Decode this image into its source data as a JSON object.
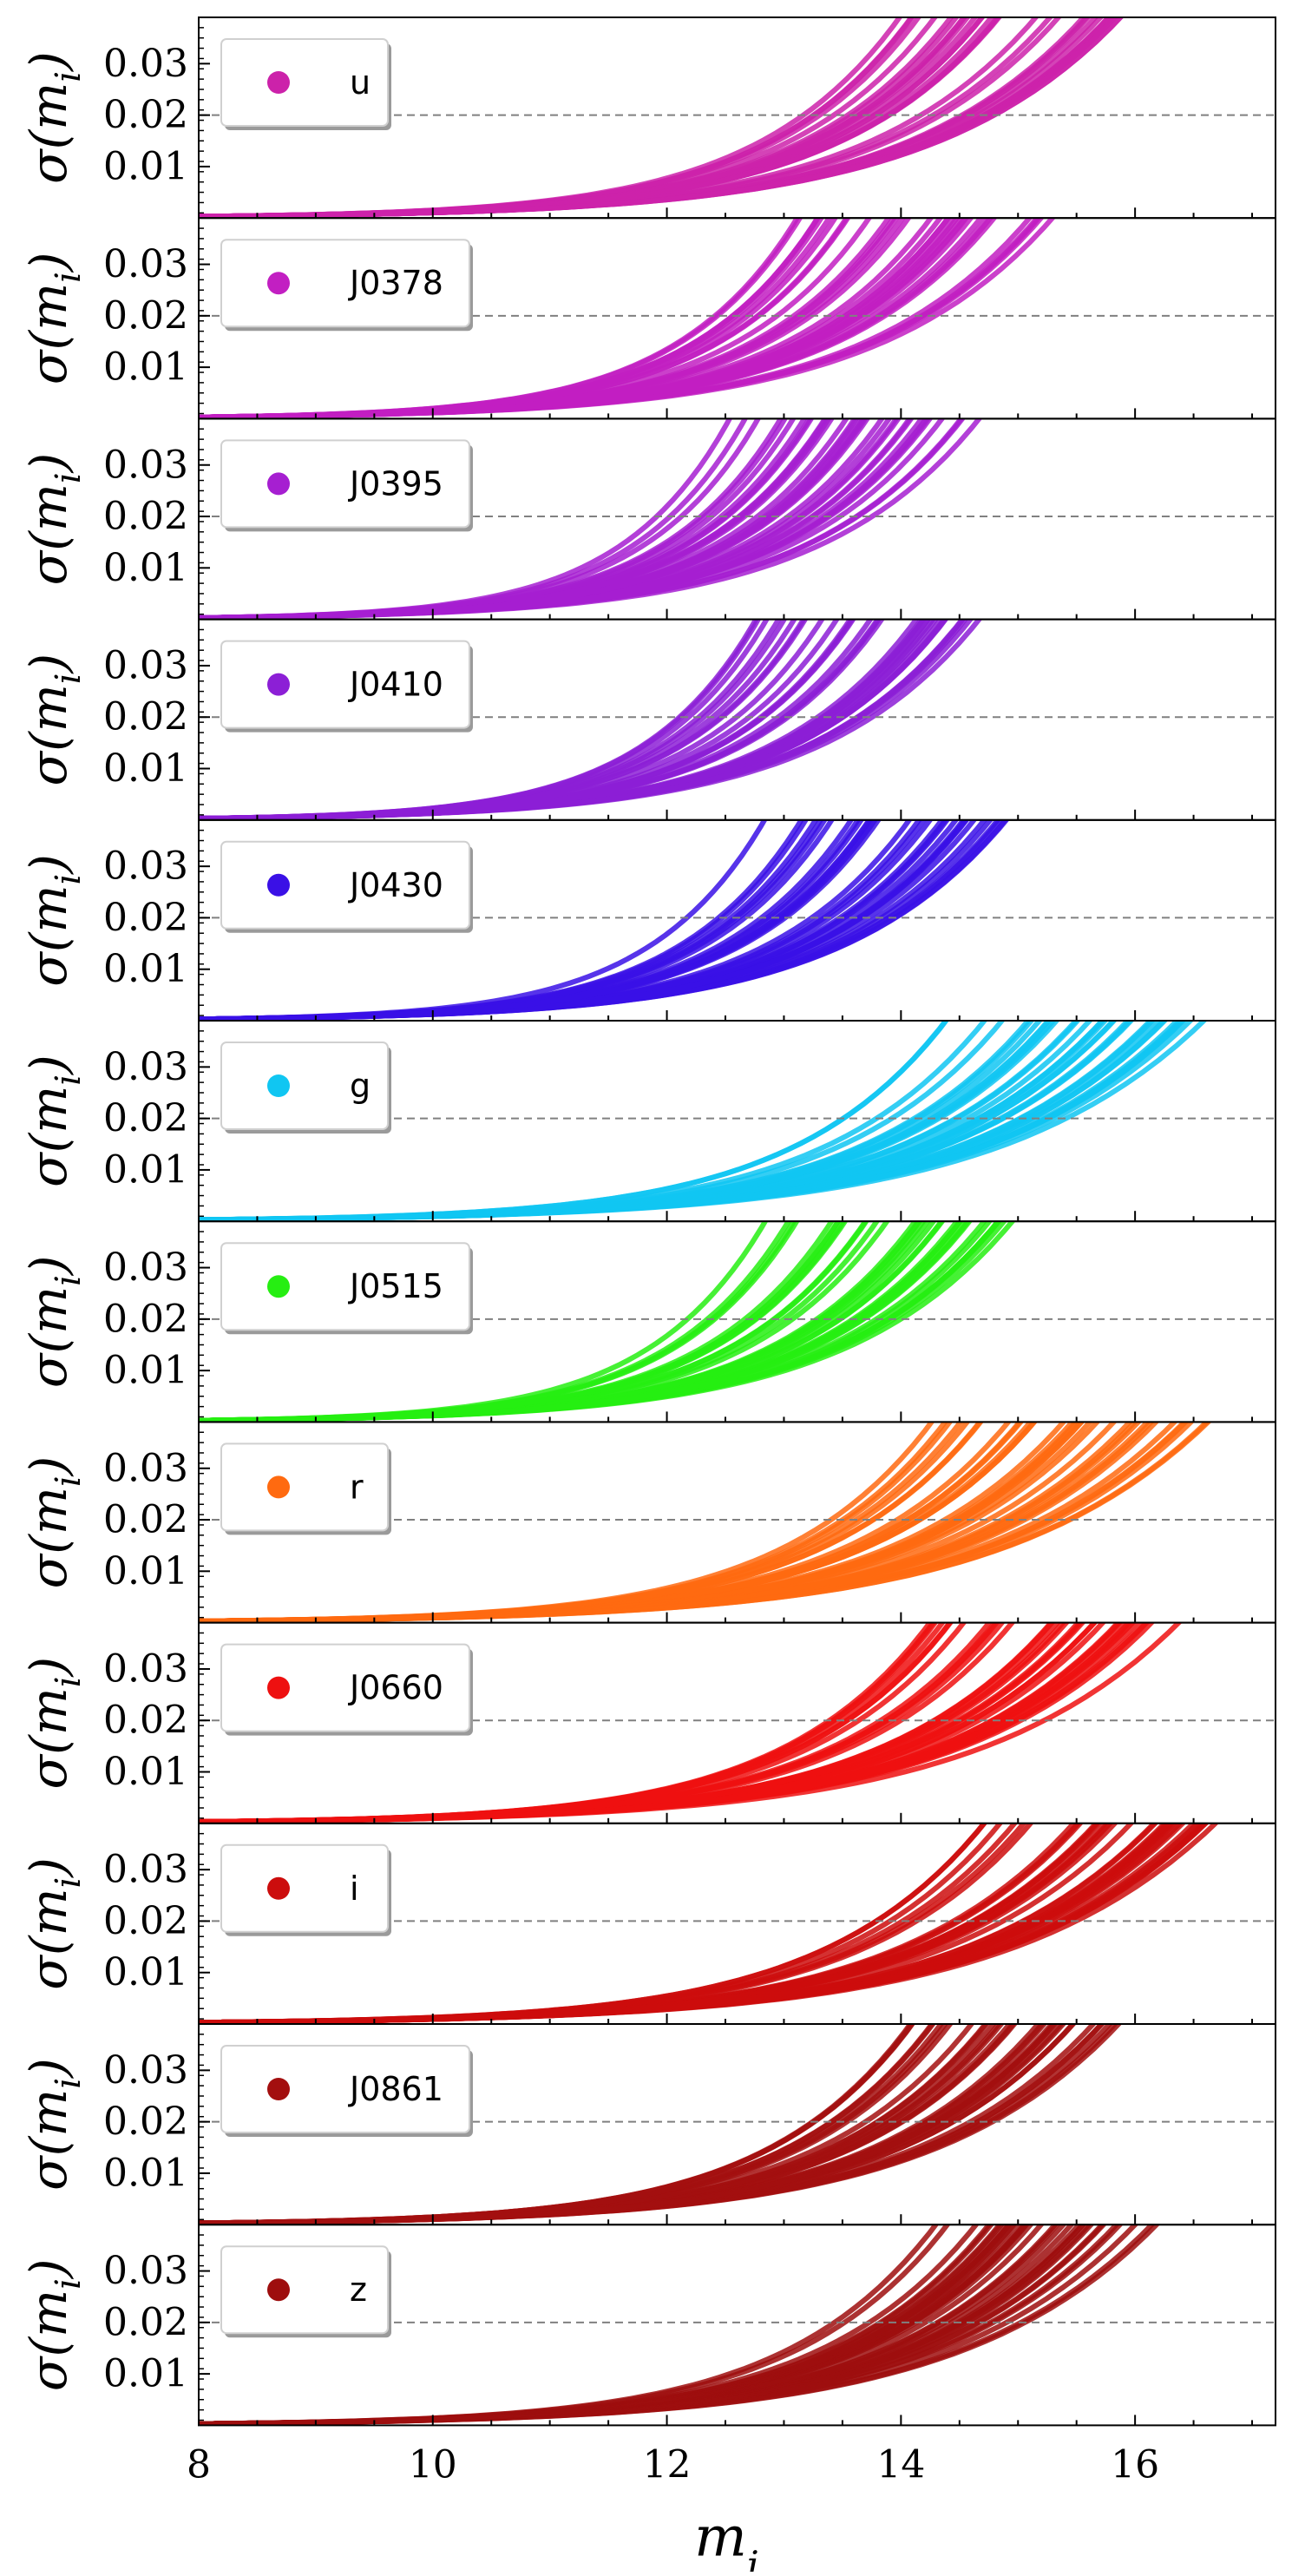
{
  "chart_data": {
    "type": "scatter",
    "xlabel": "m_i",
    "ylabel": "σ(m_i)",
    "xlim": [
      8,
      17.2
    ],
    "ylim": [
      0,
      0.039
    ],
    "x_ticks": [
      8,
      10,
      12,
      14,
      16
    ],
    "y_ticks": [
      0.01,
      0.02,
      0.03
    ],
    "reference_line": {
      "y": 0.02,
      "style": "dashed",
      "color": "#808080"
    },
    "legend_position": "top-left",
    "panels": [
      {
        "band": "u",
        "color": "#cc22aa",
        "x_start": 8.0,
        "x_end_min": 13.9,
        "x_end_max": 15.9
      },
      {
        "band": "J0378",
        "color": "#c21fc2",
        "x_start": 8.0,
        "x_end_min": 12.8,
        "x_end_max": 15.3
      },
      {
        "band": "J0395",
        "color": "#a61fd1",
        "x_start": 8.0,
        "x_end_min": 12.4,
        "x_end_max": 14.7
      },
      {
        "band": "J0410",
        "color": "#8c1fd6",
        "x_start": 8.0,
        "x_end_min": 12.6,
        "x_end_max": 14.7
      },
      {
        "band": "J0430",
        "color": "#3a10e6",
        "x_start": 8.0,
        "x_end_min": 12.8,
        "x_end_max": 15.0
      },
      {
        "band": "g",
        "color": "#10c6f2",
        "x_start": 8.0,
        "x_end_min": 14.2,
        "x_end_max": 16.6
      },
      {
        "band": "J0515",
        "color": "#26ee12",
        "x_start": 8.0,
        "x_end_min": 12.8,
        "x_end_max": 15.0
      },
      {
        "band": "r",
        "color": "#ff6a10",
        "x_start": 8.0,
        "x_end_min": 14.2,
        "x_end_max": 16.7
      },
      {
        "band": "J0660",
        "color": "#ee1010",
        "x_start": 8.0,
        "x_end_min": 14.0,
        "x_end_max": 16.4
      },
      {
        "band": "i",
        "color": "#cc0d0d",
        "x_start": 8.0,
        "x_end_min": 14.5,
        "x_end_max": 16.7
      },
      {
        "band": "J0861",
        "color": "#a30f0f",
        "x_start": 8.0,
        "x_end_min": 13.8,
        "x_end_max": 15.9
      },
      {
        "band": "z",
        "color": "#9e0e0e",
        "x_start": 8.0,
        "x_end_min": 14.2,
        "x_end_max": 16.2
      }
    ]
  }
}
